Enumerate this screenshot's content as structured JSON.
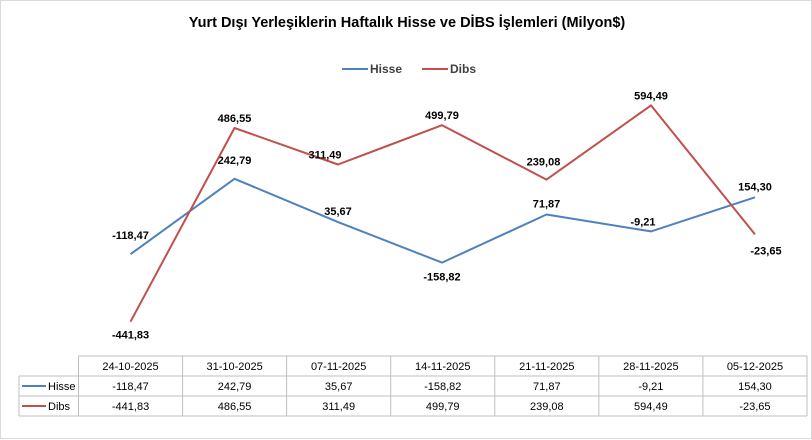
{
  "chart_data": {
    "type": "line",
    "title": "Yurt Dışı Yerleşiklerin Haftalık Hisse ve DİBS İşlemleri (Milyon$)",
    "categories": [
      "24-10-2025",
      "31-10-2025",
      "07-11-2025",
      "14-11-2025",
      "21-11-2025",
      "28-11-2025",
      "05-12-2025"
    ],
    "series": [
      {
        "name": "Hisse",
        "color": "#4f81bd",
        "values": [
          -118.47,
          242.79,
          35.67,
          -158.82,
          71.87,
          -9.21,
          154.3
        ],
        "labels": [
          "-118,47",
          "242,79",
          "35,67",
          "-158,82",
          "71,87",
          "-9,21",
          "154,30"
        ]
      },
      {
        "name": "Dibs",
        "color": "#c0504d",
        "values": [
          -441.83,
          486.55,
          311.49,
          499.79,
          239.08,
          594.49,
          -23.65
        ],
        "labels": [
          "-441,83",
          "486,55",
          "311,49",
          "499,79",
          "239,08",
          "594,49",
          "-23,65"
        ]
      }
    ],
    "legend_position": "top-center",
    "data_table": true,
    "grid": false
  }
}
